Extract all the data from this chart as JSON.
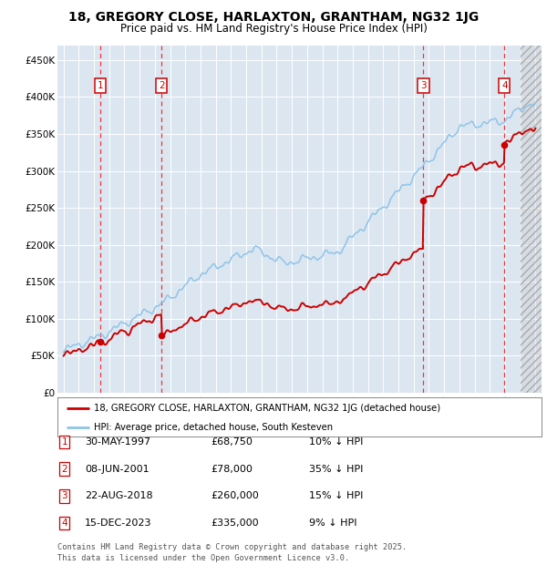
{
  "title1": "18, GREGORY CLOSE, HARLAXTON, GRANTHAM, NG32 1JG",
  "title2": "Price paid vs. HM Land Registry's House Price Index (HPI)",
  "ylim": [
    0,
    470000
  ],
  "yticks": [
    0,
    50000,
    100000,
    150000,
    200000,
    250000,
    300000,
    350000,
    400000,
    450000
  ],
  "ytick_labels": [
    "£0",
    "£50K",
    "£100K",
    "£150K",
    "£200K",
    "£250K",
    "£300K",
    "£350K",
    "£400K",
    "£450K"
  ],
  "xlim_start": 1994.6,
  "xlim_end": 2026.4,
  "bg_color": "#dce6f1",
  "red_line_color": "#cc0000",
  "blue_line_color": "#8ec4e8",
  "dashed_color": "#ee3333",
  "legend_label_red": "18, GREGORY CLOSE, HARLAXTON, GRANTHAM, NG32 1JG (detached house)",
  "legend_label_blue": "HPI: Average price, detached house, South Kesteven",
  "footer": "Contains HM Land Registry data © Crown copyright and database right 2025.\nThis data is licensed under the Open Government Licence v3.0.",
  "transactions": [
    {
      "num": 1,
      "date": "30-MAY-1997",
      "price": 68750,
      "pct": "10%",
      "year": 1997.41
    },
    {
      "num": 2,
      "date": "08-JUN-2001",
      "price": 78000,
      "pct": "35%",
      "year": 2001.44
    },
    {
      "num": 3,
      "date": "22-AUG-2018",
      "price": 260000,
      "pct": "15%",
      "year": 2018.64
    },
    {
      "num": 4,
      "date": "15-DEC-2023",
      "price": 335000,
      "pct": "9%",
      "year": 2023.96
    }
  ],
  "table_rows": [
    {
      "num": 1,
      "date": "30-MAY-1997",
      "price": "£68,750",
      "pct": "10% ↓ HPI"
    },
    {
      "num": 2,
      "date": "08-JUN-2001",
      "price": "£78,000",
      "pct": "35% ↓ HPI"
    },
    {
      "num": 3,
      "date": "22-AUG-2018",
      "price": "£260,000",
      "pct": "15% ↓ HPI"
    },
    {
      "num": 4,
      "date": "15-DEC-2023",
      "price": "£335,000",
      "pct": "9% ↓ HPI"
    }
  ],
  "hpi_anchors_years": [
    1995.0,
    1997.41,
    2001.44,
    2004.0,
    2007.5,
    2009.5,
    2013.0,
    2018.64,
    2021.0,
    2023.96,
    2025.5
  ],
  "hpi_anchors_vals": [
    57000,
    76389,
    120000,
    160000,
    195000,
    175000,
    190000,
    305882,
    360000,
    368132,
    390000
  ],
  "hpi_noise_amp": [
    3500,
    2200,
    1200
  ],
  "hpi_noise_freq": [
    4.1,
    8.5,
    16.3
  ],
  "red_noise_amp": [
    1200,
    800
  ],
  "red_noise_freq": [
    5.2,
    11.3
  ]
}
